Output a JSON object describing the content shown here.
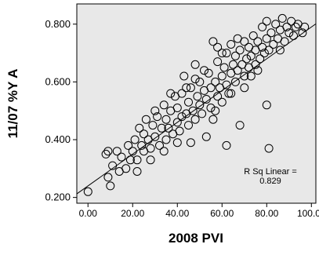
{
  "chart_data": {
    "type": "scatter",
    "xlabel": "2008 PVI",
    "ylabel": "11/07 %Y A",
    "xlim": [
      -5,
      102
    ],
    "ylim": [
      0.18,
      0.87
    ],
    "x_ticks": [
      0,
      20,
      40,
      60,
      80,
      100
    ],
    "x_tick_labels": [
      "0.00",
      "20.00",
      "40.00",
      "60.00",
      "80.00",
      "100.00"
    ],
    "y_ticks": [
      0.2,
      0.4,
      0.6,
      0.8
    ],
    "y_tick_labels": [
      "0.200",
      "0.400",
      "0.600",
      "0.800"
    ],
    "grid": false,
    "plot_background": "#e8e8e8",
    "marker_color": "#000000",
    "annotation": {
      "line1": "R Sq Linear =",
      "line2": "0.829"
    },
    "fit_line": {
      "intercept": 0.24,
      "slope": 0.0055
    },
    "points": [
      [
        0,
        0.22
      ],
      [
        8,
        0.35
      ],
      [
        9,
        0.27
      ],
      [
        9,
        0.36
      ],
      [
        10,
        0.24
      ],
      [
        11,
        0.31
      ],
      [
        13,
        0.36
      ],
      [
        14,
        0.29
      ],
      [
        15,
        0.34
      ],
      [
        17,
        0.3
      ],
      [
        18,
        0.38
      ],
      [
        19,
        0.33
      ],
      [
        20,
        0.36
      ],
      [
        21,
        0.4
      ],
      [
        22,
        0.33
      ],
      [
        23,
        0.44
      ],
      [
        24,
        0.38
      ],
      [
        25,
        0.36
      ],
      [
        25,
        0.42
      ],
      [
        27,
        0.4
      ],
      [
        28,
        0.37
      ],
      [
        29,
        0.45
      ],
      [
        30,
        0.41
      ],
      [
        31,
        0.48
      ],
      [
        32,
        0.38
      ],
      [
        33,
        0.44
      ],
      [
        34,
        0.52
      ],
      [
        35,
        0.4
      ],
      [
        35,
        0.47
      ],
      [
        36,
        0.44
      ],
      [
        37,
        0.5
      ],
      [
        38,
        0.42
      ],
      [
        39,
        0.55
      ],
      [
        40,
        0.46
      ],
      [
        40,
        0.51
      ],
      [
        41,
        0.43
      ],
      [
        42,
        0.48
      ],
      [
        42,
        0.56
      ],
      [
        43,
        0.62
      ],
      [
        44,
        0.49
      ],
      [
        45,
        0.45
      ],
      [
        45,
        0.53
      ],
      [
        46,
        0.58
      ],
      [
        47,
        0.5
      ],
      [
        48,
        0.66
      ],
      [
        48,
        0.47
      ],
      [
        49,
        0.55
      ],
      [
        50,
        0.52
      ],
      [
        50,
        0.6
      ],
      [
        51,
        0.49
      ],
      [
        52,
        0.57
      ],
      [
        53,
        0.54
      ],
      [
        54,
        0.63
      ],
      [
        55,
        0.51
      ],
      [
        55,
        0.58
      ],
      [
        56,
        0.74
      ],
      [
        56,
        0.47
      ],
      [
        57,
        0.6
      ],
      [
        58,
        0.55
      ],
      [
        58,
        0.67
      ],
      [
        59,
        0.58
      ],
      [
        60,
        0.62
      ],
      [
        60,
        0.53
      ],
      [
        61,
        0.65
      ],
      [
        62,
        0.59
      ],
      [
        62,
        0.7
      ],
      [
        63,
        0.56
      ],
      [
        64,
        0.63
      ],
      [
        64,
        0.73
      ],
      [
        65,
        0.66
      ],
      [
        66,
        0.6
      ],
      [
        66,
        0.69
      ],
      [
        67,
        0.64
      ],
      [
        68,
        0.71
      ],
      [
        68,
        0.45
      ],
      [
        69,
        0.66
      ],
      [
        70,
        0.62
      ],
      [
        70,
        0.74
      ],
      [
        71,
        0.68
      ],
      [
        72,
        0.65
      ],
      [
        72,
        0.72
      ],
      [
        73,
        0.69
      ],
      [
        74,
        0.76
      ],
      [
        75,
        0.66
      ],
      [
        75,
        0.71
      ],
      [
        76,
        0.74
      ],
      [
        77,
        0.68
      ],
      [
        78,
        0.72
      ],
      [
        78,
        0.79
      ],
      [
        79,
        0.7
      ],
      [
        80,
        0.75
      ],
      [
        80,
        0.81
      ],
      [
        80,
        0.52
      ],
      [
        81,
        0.71
      ],
      [
        82,
        0.77
      ],
      [
        83,
        0.73
      ],
      [
        84,
        0.8
      ],
      [
        85,
        0.75
      ],
      [
        86,
        0.71
      ],
      [
        86,
        0.78
      ],
      [
        87,
        0.82
      ],
      [
        88,
        0.74
      ],
      [
        89,
        0.79
      ],
      [
        90,
        0.77
      ],
      [
        91,
        0.81
      ],
      [
        92,
        0.76
      ],
      [
        93,
        0.79
      ],
      [
        94,
        0.8
      ],
      [
        96,
        0.77
      ],
      [
        97,
        0.79
      ],
      [
        62,
        0.38
      ],
      [
        53,
        0.41
      ],
      [
        46,
        0.39
      ],
      [
        37,
        0.56
      ],
      [
        30,
        0.5
      ],
      [
        26,
        0.47
      ],
      [
        44,
        0.58
      ],
      [
        52,
        0.64
      ],
      [
        57,
        0.5
      ],
      [
        64,
        0.56
      ],
      [
        70,
        0.58
      ],
      [
        76,
        0.64
      ],
      [
        81,
        0.37
      ],
      [
        67,
        0.75
      ],
      [
        60,
        0.7
      ],
      [
        48,
        0.61
      ],
      [
        40,
        0.39
      ],
      [
        34,
        0.36
      ],
      [
        22,
        0.29
      ],
      [
        28,
        0.33
      ],
      [
        58,
        0.72
      ],
      [
        73,
        0.62
      ]
    ]
  }
}
